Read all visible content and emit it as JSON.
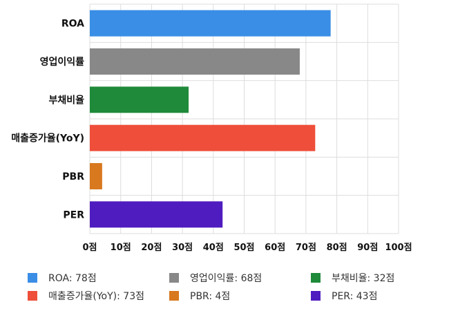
{
  "chart_data": {
    "type": "bar",
    "orientation": "horizontal",
    "categories": [
      "ROA",
      "영업이익률",
      "부채비율",
      "매출증가율(YoY)",
      "PBR",
      "PER"
    ],
    "values": [
      78,
      68,
      32,
      73,
      4,
      43
    ],
    "colors": [
      "#3a8ee6",
      "#888888",
      "#1e8a3a",
      "#ee4e3a",
      "#d8781f",
      "#4f1cc0"
    ],
    "xlim": [
      0,
      100
    ],
    "x_ticks": [
      0,
      10,
      20,
      30,
      40,
      50,
      60,
      70,
      80,
      90,
      100
    ],
    "tick_suffix": "점",
    "grid": true,
    "legend_position": "bottom",
    "legend": [
      {
        "label": "ROA: 78점",
        "color": "#3a8ee6"
      },
      {
        "label": "영업이익률: 68점",
        "color": "#888888"
      },
      {
        "label": "부채비율: 32점",
        "color": "#1e8a3a"
      },
      {
        "label": "매출증가율(YoY): 73점",
        "color": "#ee4e3a"
      },
      {
        "label": "PBR: 4점",
        "color": "#d8781f"
      },
      {
        "label": "PER: 43점",
        "color": "#4f1cc0"
      }
    ]
  }
}
